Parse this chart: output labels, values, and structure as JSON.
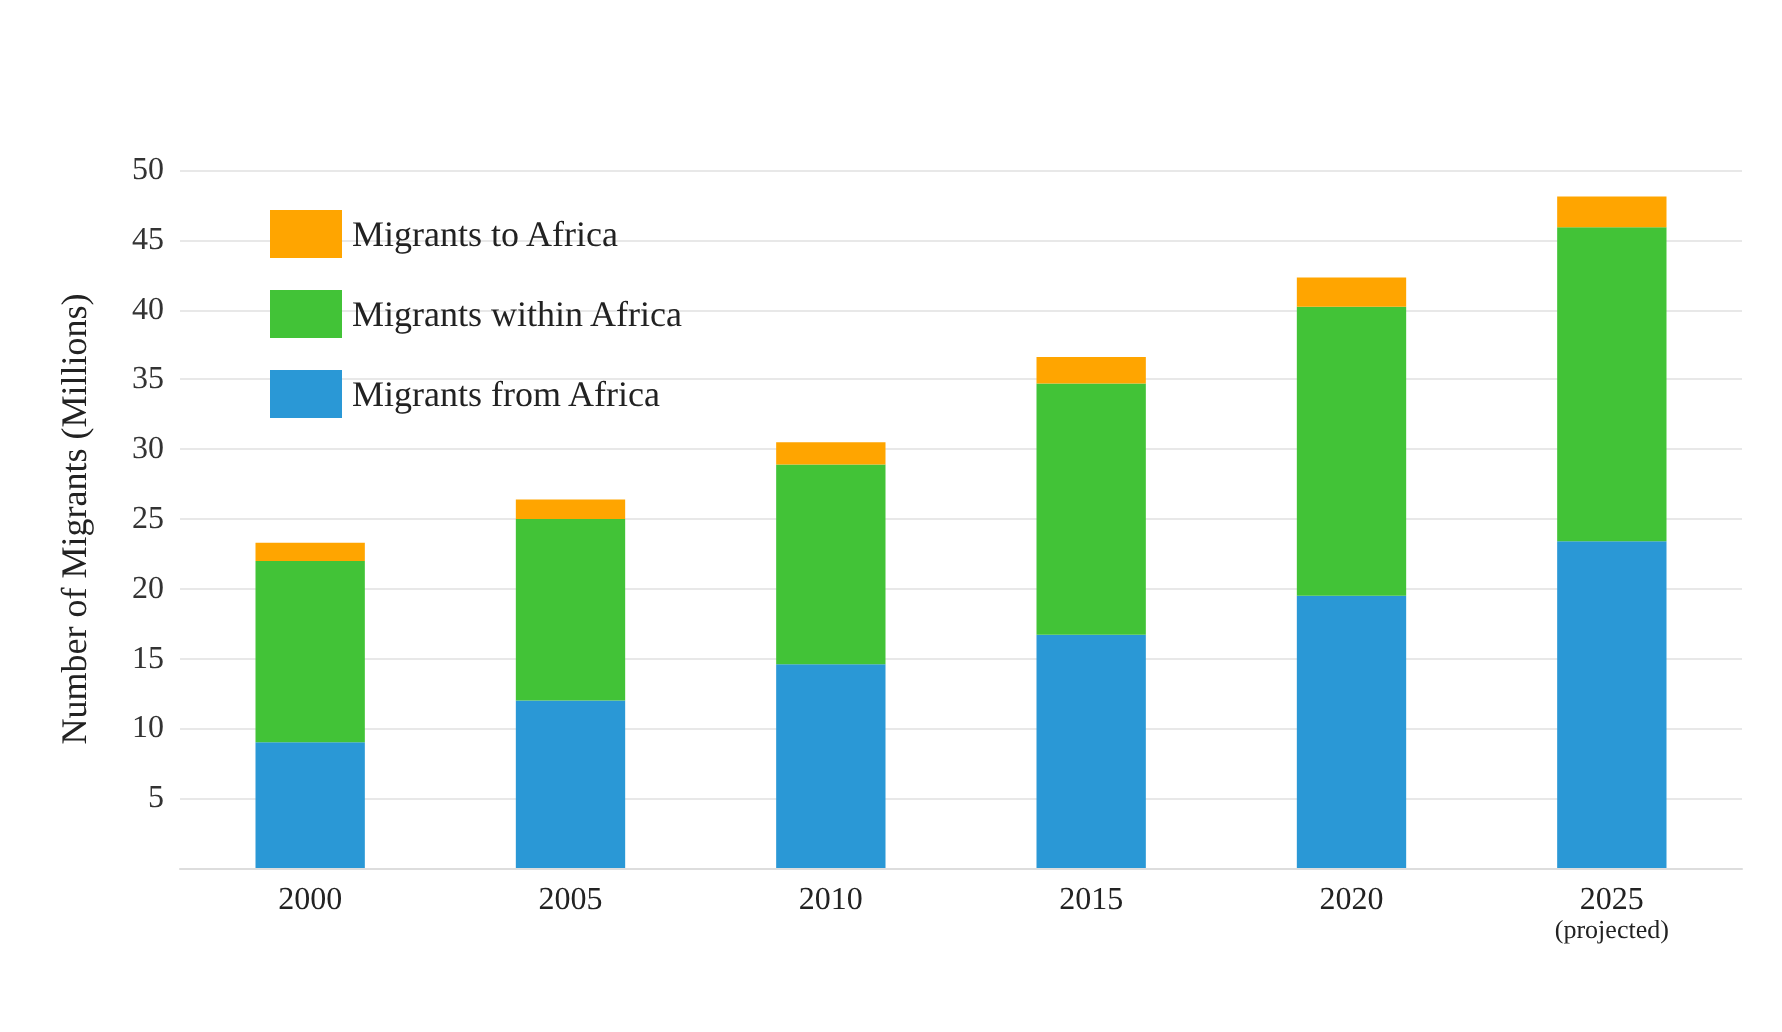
{
  "chart_data": {
    "type": "bar",
    "stacked": true,
    "ylabel": "Number of Migrants (Millions)",
    "categories": [
      "2000",
      "2005",
      "2010",
      "2015",
      "2020",
      "2025\n(projected)"
    ],
    "series": [
      {
        "name": "Migrants from Africa",
        "color": "#2a98d6",
        "values": [
          9,
          12,
          14.6,
          16.7,
          19.5,
          23.4
        ]
      },
      {
        "name": "Migrants within Africa",
        "color": "#42c337",
        "values": [
          13,
          13,
          14.3,
          18,
          20.7,
          22.5
        ]
      },
      {
        "name": "Migrants to Africa",
        "color": "#ffa500",
        "values": [
          1.3,
          1.4,
          1.6,
          1.9,
          2.1,
          2.2
        ]
      }
    ],
    "ylim": [
      0,
      50
    ],
    "yticks": [
      5,
      10,
      15,
      20,
      25,
      30,
      35,
      40,
      45,
      50
    ],
    "grid": "y",
    "legend": "top left"
  }
}
